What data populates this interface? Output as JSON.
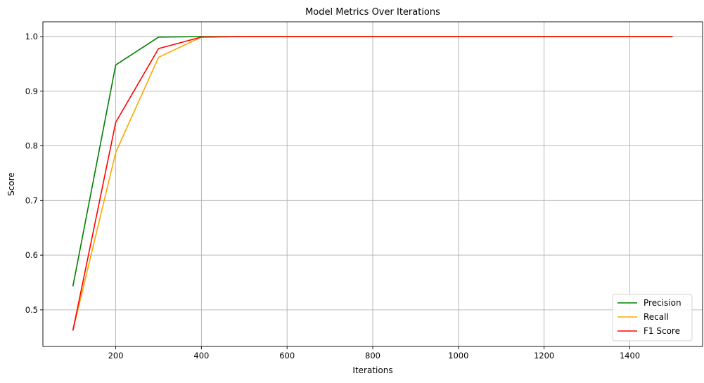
{
  "chart_data": {
    "type": "line",
    "title": "Model Metrics Over Iterations",
    "xlabel": "Iterations",
    "ylabel": "Score",
    "x": [
      100,
      200,
      300,
      400,
      500,
      600,
      700,
      800,
      900,
      1000,
      1100,
      1200,
      1300,
      1400,
      1500
    ],
    "xlim": [
      30,
      1570
    ],
    "ylim": [
      0.433,
      1.027
    ],
    "xticks": [
      200,
      400,
      600,
      800,
      1000,
      1200,
      1400
    ],
    "yticks": [
      0.5,
      0.6,
      0.7,
      0.8,
      0.9,
      1.0
    ],
    "xtick_labels": [
      "200",
      "400",
      "600",
      "800",
      "1000",
      "1200",
      "1400"
    ],
    "ytick_labels": [
      "0.5",
      "0.6",
      "0.7",
      "0.8",
      "0.9",
      "1.0"
    ],
    "grid": true,
    "legend_position": "bottom-right",
    "series": [
      {
        "name": "Precision",
        "color": "#008000",
        "values": [
          0.543,
          0.948,
          0.999,
          1.0,
          1.0,
          1.0,
          1.0,
          1.0,
          1.0,
          1.0,
          1.0,
          1.0,
          1.0,
          1.0,
          1.0
        ]
      },
      {
        "name": "Recall",
        "color": "#FFA500",
        "values": [
          0.462,
          0.788,
          0.962,
          0.999,
          1.0,
          1.0,
          1.0,
          1.0,
          1.0,
          1.0,
          1.0,
          1.0,
          1.0,
          1.0,
          1.0
        ]
      },
      {
        "name": "F1 Score",
        "color": "#FF0000",
        "values": [
          0.462,
          0.843,
          0.978,
          0.999,
          1.0,
          1.0,
          1.0,
          1.0,
          1.0,
          1.0,
          1.0,
          1.0,
          1.0,
          1.0,
          1.0
        ]
      }
    ]
  }
}
